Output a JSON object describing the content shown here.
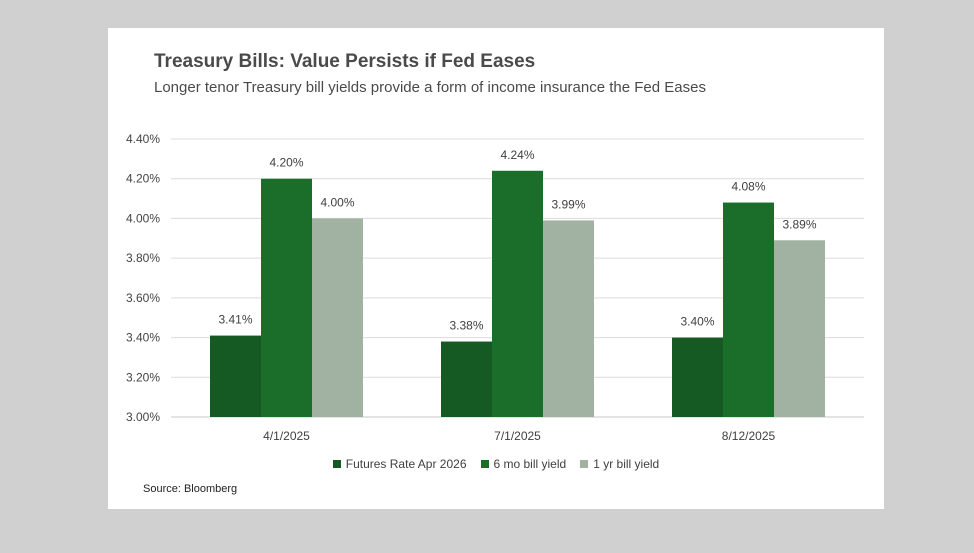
{
  "title": "Treasury Bills:  Value Persists if Fed Eases",
  "subtitle": "Longer tenor Treasury bill yields provide a form of income insurance  the Fed Eases",
  "source": "Source:  Bloomberg",
  "chart_data": {
    "type": "bar",
    "categories": [
      "4/1/2025",
      "7/1/2025",
      "8/12/2025"
    ],
    "series": [
      {
        "name": "Futures Rate Apr 2026",
        "values": [
          3.41,
          3.38,
          3.4
        ],
        "labels": [
          "3.41%",
          "3.38%",
          "3.40%"
        ],
        "color": "#155a22"
      },
      {
        "name": "6 mo bill yield",
        "values": [
          4.2,
          4.24,
          4.08
        ],
        "labels": [
          "4.20%",
          "4.24%",
          "4.08%"
        ],
        "color": "#1b6e2a"
      },
      {
        "name": "1 yr bill yield",
        "values": [
          4.0,
          3.99,
          3.89
        ],
        "labels": [
          "4.00%",
          "3.99%",
          "3.89%"
        ],
        "color": "#a2b2a2"
      }
    ],
    "yticks": [
      "3.00%",
      "3.20%",
      "3.40%",
      "3.60%",
      "3.80%",
      "4.00%",
      "4.20%",
      "4.40%"
    ],
    "ylim": [
      3.0,
      4.4
    ],
    "grid": true,
    "legend_position": "bottom"
  }
}
